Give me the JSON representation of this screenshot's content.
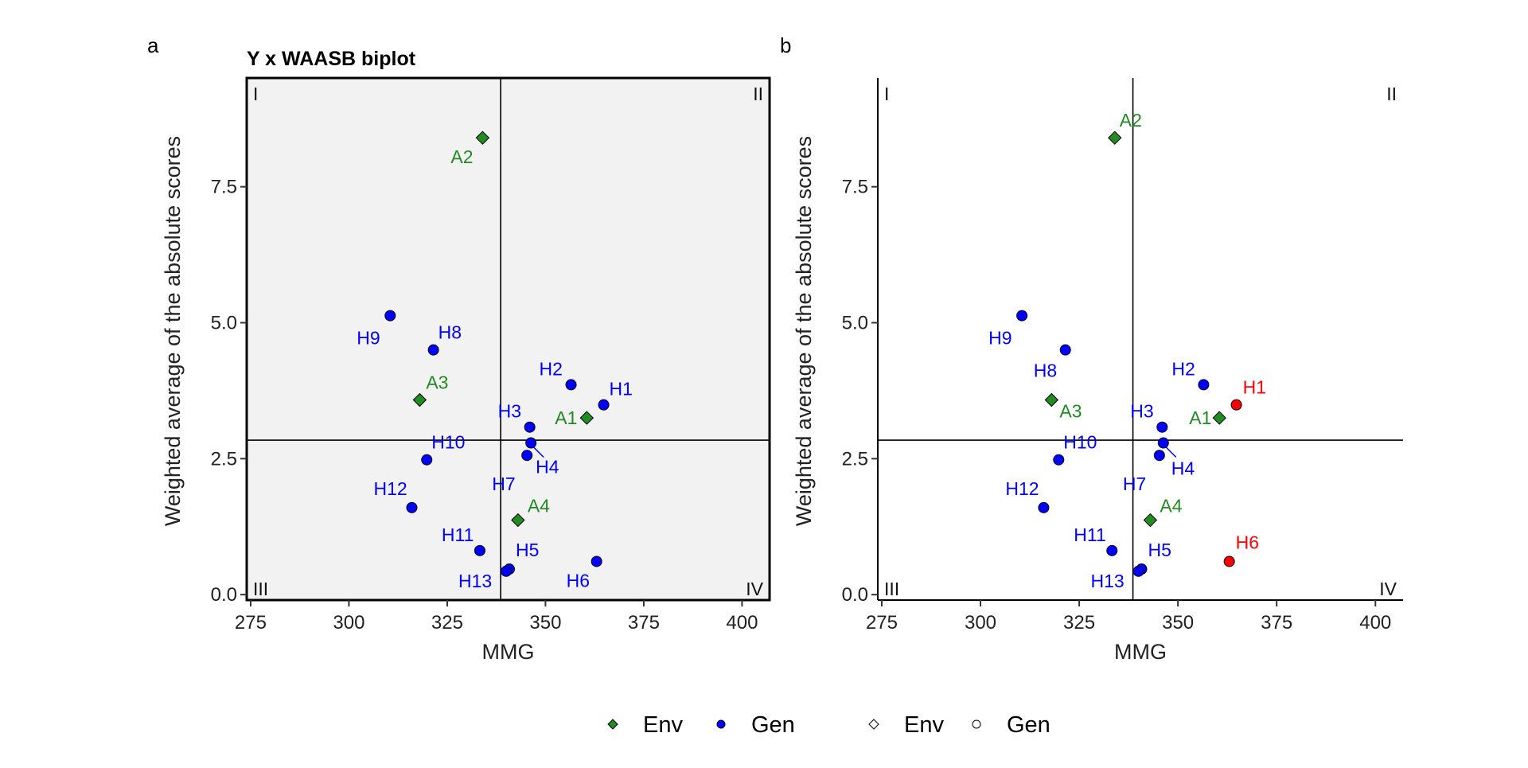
{
  "colors": {
    "env": "#228b22",
    "gen": "#0000ff",
    "highlight": "#ff0000",
    "panel_bg": "#f2f2f2",
    "stroke": "#000000"
  },
  "chart_data": [
    {
      "panel": "a",
      "title": "Y x WAASB biplot",
      "type": "scatter",
      "xlabel": "MMG",
      "ylabel": "Weighted average of the absolute scores",
      "xlim": [
        274,
        407
      ],
      "ylim": [
        -0.1,
        9.5
      ],
      "xticks": [
        "275",
        "300",
        "325",
        "350",
        "375",
        "400"
      ],
      "xtick_values": [
        275,
        300,
        325,
        350,
        375,
        400
      ],
      "yticks": [
        "0.0",
        "2.5",
        "5.0",
        "7.5"
      ],
      "ytick_values": [
        0,
        2.5,
        5,
        7.5
      ],
      "grid": false,
      "background": "shaded",
      "xline": 338.6,
      "yline": 2.84,
      "quadrants": [
        "I",
        "II",
        "III",
        "IV"
      ],
      "points": [
        {
          "label": "A1",
          "type": "Env",
          "x": 360.5,
          "y": 3.25,
          "color": "#228b22"
        },
        {
          "label": "A2",
          "type": "Env",
          "x": 334.0,
          "y": 8.4,
          "color": "#228b22"
        },
        {
          "label": "A3",
          "type": "Env",
          "x": 318.0,
          "y": 3.58,
          "color": "#228b22"
        },
        {
          "label": "A4",
          "type": "Env",
          "x": 343.0,
          "y": 1.37,
          "color": "#228b22"
        },
        {
          "label": "H1",
          "type": "Gen",
          "x": 364.8,
          "y": 3.49,
          "color": "#0000ff"
        },
        {
          "label": "H2",
          "type": "Gen",
          "x": 356.5,
          "y": 3.86,
          "color": "#0000ff"
        },
        {
          "label": "H3",
          "type": "Gen",
          "x": 346.0,
          "y": 3.08,
          "color": "#0000ff"
        },
        {
          "label": "H4",
          "type": "Gen",
          "x": 346.3,
          "y": 2.79,
          "color": "#0000ff"
        },
        {
          "label": "H5",
          "type": "Gen",
          "x": 340.8,
          "y": 0.47,
          "color": "#0000ff"
        },
        {
          "label": "H6",
          "type": "Gen",
          "x": 363.0,
          "y": 0.61,
          "color": "#0000ff"
        },
        {
          "label": "H7",
          "type": "Gen",
          "x": 345.3,
          "y": 2.56,
          "color": "#0000ff"
        },
        {
          "label": "H8",
          "type": "Gen",
          "x": 321.5,
          "y": 4.5,
          "color": "#0000ff"
        },
        {
          "label": "H9",
          "type": "Gen",
          "x": 310.5,
          "y": 5.13,
          "color": "#0000ff"
        },
        {
          "label": "H10",
          "type": "Gen",
          "x": 319.8,
          "y": 2.48,
          "color": "#0000ff"
        },
        {
          "label": "H11",
          "type": "Gen",
          "x": 333.3,
          "y": 0.81,
          "color": "#0000ff"
        },
        {
          "label": "H12",
          "type": "Gen",
          "x": 316.0,
          "y": 1.6,
          "color": "#0000ff"
        },
        {
          "label": "H13",
          "type": "Gen",
          "x": 340.0,
          "y": 0.43,
          "color": "#0000ff"
        }
      ]
    },
    {
      "panel": "b",
      "title": "",
      "type": "scatter",
      "xlabel": "MMG",
      "ylabel": "Weighted average of the absolute scores",
      "xlim": [
        274,
        407
      ],
      "ylim": [
        -0.1,
        9.5
      ],
      "xticks": [
        "275",
        "300",
        "325",
        "350",
        "375",
        "400"
      ],
      "xtick_values": [
        275,
        300,
        325,
        350,
        375,
        400
      ],
      "yticks": [
        "0.0",
        "2.5",
        "5.0",
        "7.5"
      ],
      "ytick_values": [
        0,
        2.5,
        5,
        7.5
      ],
      "grid": false,
      "background": "white",
      "xline": 338.6,
      "yline": 2.84,
      "quadrants": [
        "I",
        "II",
        "III",
        "IV"
      ],
      "points": [
        {
          "label": "A1",
          "type": "Env",
          "x": 360.5,
          "y": 3.25,
          "color": "#228b22"
        },
        {
          "label": "A2",
          "type": "Env",
          "x": 334.0,
          "y": 8.4,
          "color": "#228b22"
        },
        {
          "label": "A3",
          "type": "Env",
          "x": 318.0,
          "y": 3.58,
          "color": "#228b22"
        },
        {
          "label": "A4",
          "type": "Env",
          "x": 343.0,
          "y": 1.37,
          "color": "#228b22"
        },
        {
          "label": "H1",
          "type": "Gen",
          "x": 364.8,
          "y": 3.49,
          "color": "#ff0000"
        },
        {
          "label": "H2",
          "type": "Gen",
          "x": 356.5,
          "y": 3.86,
          "color": "#0000ff"
        },
        {
          "label": "H3",
          "type": "Gen",
          "x": 346.0,
          "y": 3.08,
          "color": "#0000ff"
        },
        {
          "label": "H4",
          "type": "Gen",
          "x": 346.3,
          "y": 2.79,
          "color": "#0000ff"
        },
        {
          "label": "H5",
          "type": "Gen",
          "x": 340.8,
          "y": 0.47,
          "color": "#0000ff"
        },
        {
          "label": "H6",
          "type": "Gen",
          "x": 363.0,
          "y": 0.61,
          "color": "#ff0000"
        },
        {
          "label": "H7",
          "type": "Gen",
          "x": 345.3,
          "y": 2.56,
          "color": "#0000ff"
        },
        {
          "label": "H8",
          "type": "Gen",
          "x": 321.5,
          "y": 4.5,
          "color": "#0000ff"
        },
        {
          "label": "H9",
          "type": "Gen",
          "x": 310.5,
          "y": 5.13,
          "color": "#0000ff"
        },
        {
          "label": "H10",
          "type": "Gen",
          "x": 319.8,
          "y": 2.48,
          "color": "#0000ff"
        },
        {
          "label": "H11",
          "type": "Gen",
          "x": 333.3,
          "y": 0.81,
          "color": "#0000ff"
        },
        {
          "label": "H12",
          "type": "Gen",
          "x": 316.0,
          "y": 1.6,
          "color": "#0000ff"
        },
        {
          "label": "H13",
          "type": "Gen",
          "x": 340.0,
          "y": 0.43,
          "color": "#0000ff"
        }
      ]
    }
  ],
  "legend": {
    "position": "bottom",
    "items": [
      {
        "label": "Env",
        "marker": "diamond",
        "filled": true,
        "color": "#228b22"
      },
      {
        "label": "Gen",
        "marker": "circle",
        "filled": true,
        "color": "#0000ff"
      },
      {
        "label": "Env",
        "marker": "diamond",
        "filled": false,
        "color": "#000000"
      },
      {
        "label": "Gen",
        "marker": "circle",
        "filled": false,
        "color": "#000000"
      }
    ]
  }
}
